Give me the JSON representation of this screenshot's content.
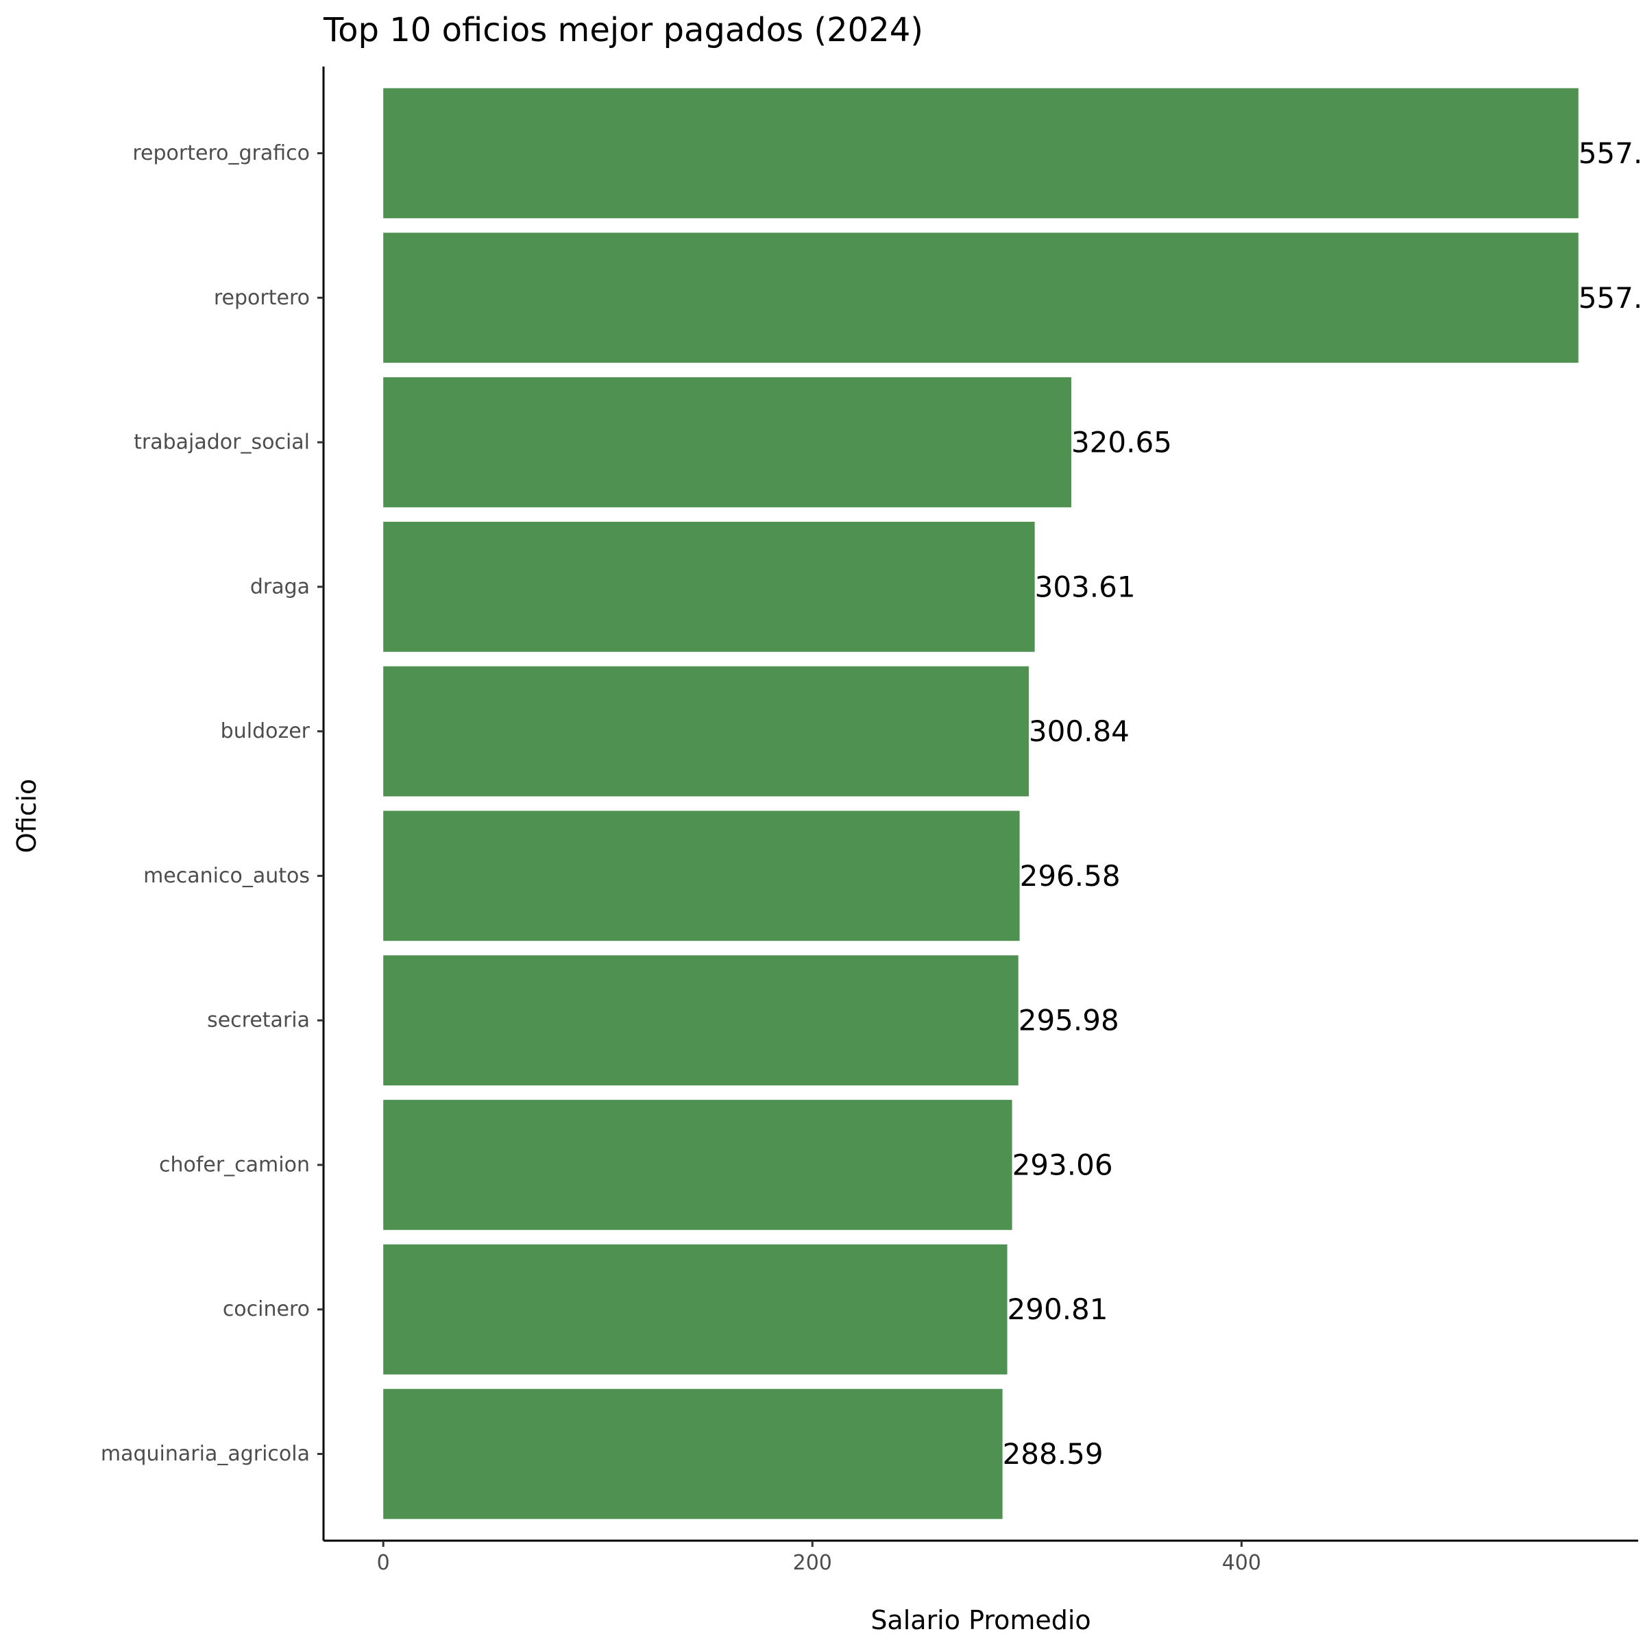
{
  "chart_data": {
    "type": "bar",
    "orientation": "horizontal",
    "title": "Top 10 oficios mejor pagados (2024)",
    "xlabel": "Salario Promedio",
    "ylabel": "Oficio",
    "categories": [
      "reportero_grafico",
      "reportero",
      "trabajador_social",
      "draga",
      "buldozer",
      "mecanico_autos",
      "secretaria",
      "chofer_camion",
      "cocinero",
      "maquinaria_agricola"
    ],
    "values": [
      557.0,
      557.0,
      320.65,
      303.61,
      300.84,
      296.58,
      295.98,
      293.06,
      290.81,
      288.59
    ],
    "data_labels": [
      "557.",
      "557.",
      "320.65",
      "303.61",
      "300.84",
      "296.58",
      "295.98",
      "293.06",
      "290.81",
      "288.59"
    ],
    "x_ticks": [
      0,
      200,
      400
    ],
    "x_tick_labels": [
      "0",
      "200",
      "400"
    ],
    "xlim": [
      -27.85,
      584.85
    ],
    "bar_color": "#4e9150",
    "grid": false,
    "legend": "none"
  }
}
